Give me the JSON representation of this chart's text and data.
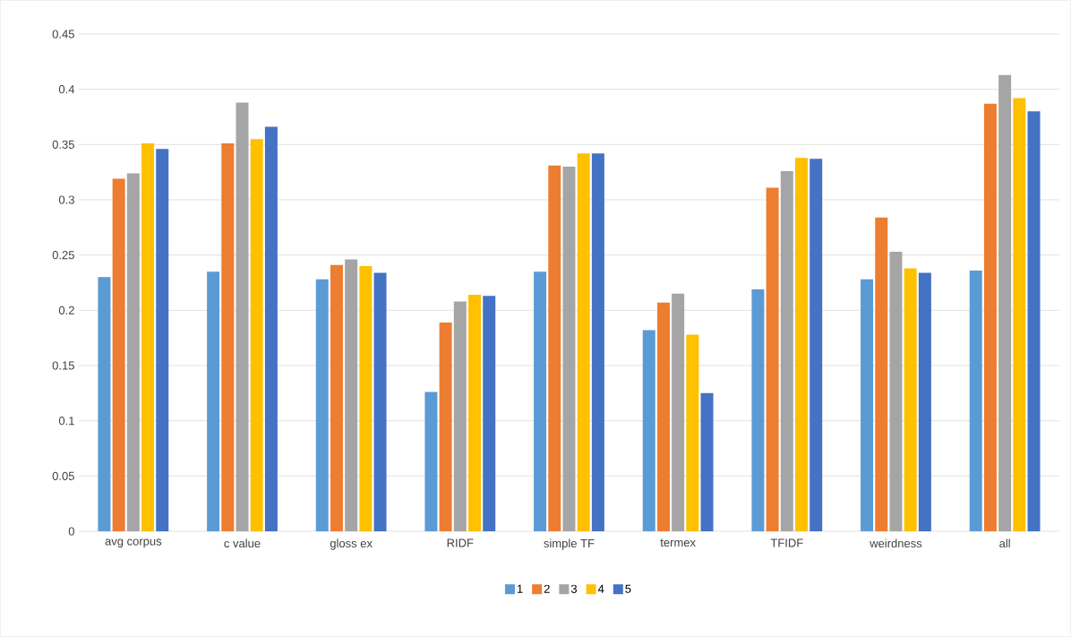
{
  "chart_data": {
    "type": "bar",
    "categories": [
      "avg corpus",
      "c value",
      "gloss ex",
      "RIDF",
      "simple TF",
      "termex",
      "TFIDF",
      "weirdness",
      "all"
    ],
    "series": [
      {
        "name": "1",
        "color": "#5b9bd5",
        "values": [
          0.23,
          0.235,
          0.228,
          0.126,
          0.235,
          0.182,
          0.219,
          0.228,
          0.236
        ]
      },
      {
        "name": "2",
        "color": "#ed7d31",
        "values": [
          0.319,
          0.351,
          0.241,
          0.189,
          0.331,
          0.207,
          0.311,
          0.284,
          0.387
        ]
      },
      {
        "name": "3",
        "color": "#a5a5a5",
        "values": [
          0.324,
          0.388,
          0.246,
          0.208,
          0.33,
          0.215,
          0.326,
          0.253,
          0.413
        ]
      },
      {
        "name": "4",
        "color": "#ffc000",
        "values": [
          0.351,
          0.355,
          0.24,
          0.214,
          0.342,
          0.178,
          0.338,
          0.238,
          0.392
        ]
      },
      {
        "name": "5",
        "color": "#4472c4",
        "values": [
          0.346,
          0.366,
          0.234,
          0.213,
          0.342,
          0.125,
          0.337,
          0.234,
          0.38
        ]
      }
    ],
    "ylim": [
      0,
      0.45
    ],
    "yticks": [
      0,
      0.05,
      0.1,
      0.15,
      0.2,
      0.25,
      0.3,
      0.35,
      0.4,
      0.45
    ],
    "grid": "y",
    "legend": "bottom"
  }
}
